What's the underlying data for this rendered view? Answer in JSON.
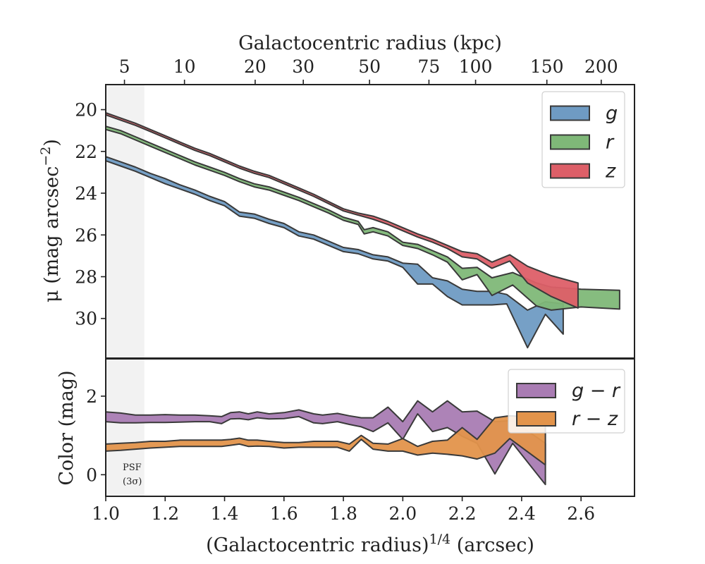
{
  "chart_data": [
    {
      "type": "area",
      "panel": "surface-brightness",
      "xlabel": "(Galactocentric radius)",
      "xlabel_sup": "1/4",
      "xlabel_unit": " (arcsec)",
      "ylabel": "μ (mag arcsec",
      "ylabel_sup": "−2",
      "ylabel_close": ")",
      "top_xlabel": "Galactocentric radius (kpc)",
      "top_x_ticks": [
        {
          "label": "5",
          "x": 1.063
        },
        {
          "label": "10",
          "x": 1.265
        },
        {
          "label": "20",
          "x": 1.503
        },
        {
          "label": "30",
          "x": 1.665
        },
        {
          "label": "50",
          "x": 1.888
        },
        {
          "label": "75",
          "x": 2.088
        },
        {
          "label": "100",
          "x": 2.245
        },
        {
          "label": "150",
          "x": 2.485
        },
        {
          "label": "200",
          "x": 2.668
        }
      ],
      "xlim": [
        1.0,
        2.78
      ],
      "ylim": [
        18.8,
        31.9
      ],
      "y_inverted": true,
      "y_ticks": [
        20,
        22,
        24,
        26,
        28,
        30
      ],
      "legend_position": "top-right",
      "psf_band": {
        "x": [
          1.0,
          1.13
        ]
      },
      "series": [
        {
          "name": "g",
          "color": "#6f9bc3",
          "x": [
            1.0,
            1.05,
            1.1,
            1.15,
            1.2,
            1.25,
            1.3,
            1.35,
            1.4,
            1.45,
            1.5,
            1.55,
            1.6,
            1.65,
            1.7,
            1.75,
            1.8,
            1.85,
            1.9,
            1.95,
            2.0,
            2.05,
            2.1,
            2.15,
            2.2,
            2.25,
            2.3,
            2.35,
            2.42,
            2.48,
            2.54
          ],
          "lower": [
            22.25,
            22.5,
            22.75,
            23.05,
            23.3,
            23.6,
            23.85,
            24.15,
            24.4,
            24.9,
            25.0,
            25.25,
            25.45,
            25.85,
            26.0,
            26.3,
            26.6,
            26.7,
            26.95,
            27.05,
            27.35,
            27.4,
            28.05,
            28.2,
            28.6,
            28.7,
            28.7,
            28.85,
            29.6,
            29.2,
            29.3
          ],
          "upper": [
            22.45,
            22.7,
            22.95,
            23.25,
            23.55,
            23.8,
            24.05,
            24.35,
            24.6,
            25.1,
            25.2,
            25.45,
            25.65,
            26.05,
            26.2,
            26.5,
            26.8,
            26.9,
            27.15,
            27.25,
            27.55,
            28.35,
            28.35,
            28.95,
            29.35,
            29.35,
            29.35,
            29.3,
            31.4,
            29.8,
            30.75
          ]
        },
        {
          "name": "r",
          "color": "#7fb878",
          "x": [
            1.0,
            1.05,
            1.1,
            1.15,
            1.2,
            1.25,
            1.3,
            1.35,
            1.4,
            1.45,
            1.5,
            1.55,
            1.6,
            1.65,
            1.7,
            1.75,
            1.8,
            1.85,
            1.87,
            1.9,
            1.95,
            2.0,
            2.05,
            2.1,
            2.15,
            2.2,
            2.25,
            2.3,
            2.37,
            2.45,
            2.5,
            2.6,
            2.73
          ],
          "lower": [
            20.8,
            21.0,
            21.3,
            21.6,
            21.9,
            22.2,
            22.5,
            22.75,
            23.0,
            23.3,
            23.55,
            23.7,
            23.95,
            24.2,
            24.5,
            24.8,
            25.15,
            25.35,
            25.75,
            25.65,
            25.85,
            26.35,
            26.45,
            26.75,
            27.05,
            27.6,
            27.55,
            28.05,
            27.8,
            28.3,
            28.5,
            28.6,
            28.65
          ],
          "upper": [
            20.95,
            21.15,
            21.45,
            21.75,
            22.05,
            22.35,
            22.65,
            22.9,
            23.15,
            23.45,
            23.7,
            23.85,
            24.1,
            24.35,
            24.65,
            24.95,
            25.3,
            25.5,
            25.95,
            25.85,
            26.05,
            26.5,
            26.65,
            26.95,
            27.3,
            28.15,
            27.9,
            28.9,
            28.4,
            29.4,
            29.6,
            29.45,
            29.55
          ]
        },
        {
          "name": "z",
          "color": "#dd5f68",
          "x": [
            1.0,
            1.05,
            1.1,
            1.15,
            1.2,
            1.25,
            1.3,
            1.35,
            1.4,
            1.45,
            1.5,
            1.55,
            1.6,
            1.65,
            1.7,
            1.75,
            1.8,
            1.85,
            1.9,
            1.95,
            2.0,
            2.05,
            2.1,
            2.15,
            2.2,
            2.25,
            2.3,
            2.36,
            2.42,
            2.5,
            2.59
          ],
          "lower": [
            20.15,
            20.4,
            20.65,
            20.95,
            21.25,
            21.55,
            21.85,
            22.1,
            22.4,
            22.7,
            22.95,
            23.15,
            23.45,
            23.75,
            24.05,
            24.4,
            24.75,
            24.95,
            25.1,
            25.35,
            25.65,
            25.95,
            26.2,
            26.5,
            26.8,
            26.9,
            27.3,
            26.95,
            27.5,
            27.95,
            28.3
          ],
          "upper": [
            20.25,
            20.5,
            20.75,
            21.05,
            21.35,
            21.65,
            21.95,
            22.2,
            22.5,
            22.8,
            23.05,
            23.25,
            23.55,
            23.85,
            24.15,
            24.5,
            24.85,
            25.05,
            25.25,
            25.5,
            25.8,
            26.1,
            26.35,
            26.65,
            27.05,
            27.15,
            27.6,
            27.25,
            28.3,
            28.95,
            29.5
          ]
        }
      ]
    },
    {
      "type": "area",
      "panel": "color",
      "ylabel": "Color (mag)",
      "xlim": [
        1.0,
        2.78
      ],
      "ylim": [
        -0.55,
        2.95
      ],
      "y_ticks": [
        0,
        2
      ],
      "x_ticks": [
        "1.0",
        "1.2",
        "1.4",
        "1.6",
        "1.8",
        "2.0",
        "2.2",
        "2.4",
        "2.6"
      ],
      "legend_position": "top-right",
      "psf_label_line1": "PSF",
      "psf_label_line2": "(3σ)",
      "series": [
        {
          "name": "g − r",
          "color": "#a97cb3",
          "x": [
            1.0,
            1.05,
            1.1,
            1.15,
            1.2,
            1.25,
            1.3,
            1.35,
            1.39,
            1.42,
            1.45,
            1.48,
            1.51,
            1.55,
            1.6,
            1.65,
            1.7,
            1.73,
            1.78,
            1.82,
            1.86,
            1.9,
            1.95,
            2.0,
            2.05,
            2.1,
            2.15,
            2.2,
            2.25,
            2.31,
            2.37,
            2.48
          ],
          "lower": [
            1.35,
            1.32,
            1.32,
            1.33,
            1.33,
            1.34,
            1.35,
            1.35,
            1.3,
            1.42,
            1.43,
            1.4,
            1.45,
            1.42,
            1.43,
            1.48,
            1.32,
            1.3,
            1.35,
            1.28,
            1.22,
            1.1,
            1.32,
            0.9,
            1.55,
            1.1,
            1.2,
            0.98,
            0.8,
            0.02,
            0.8,
            -0.25
          ],
          "upper": [
            1.6,
            1.57,
            1.52,
            1.52,
            1.53,
            1.52,
            1.52,
            1.5,
            1.48,
            1.58,
            1.6,
            1.55,
            1.6,
            1.55,
            1.58,
            1.65,
            1.55,
            1.52,
            1.56,
            1.5,
            1.45,
            1.45,
            1.72,
            1.35,
            1.88,
            1.6,
            1.88,
            1.6,
            1.62,
            1.35,
            1.38,
            0.8
          ]
        },
        {
          "name": "r − z",
          "color": "#e3944b",
          "x": [
            1.0,
            1.05,
            1.1,
            1.15,
            1.2,
            1.25,
            1.3,
            1.35,
            1.39,
            1.42,
            1.45,
            1.48,
            1.51,
            1.55,
            1.6,
            1.65,
            1.7,
            1.73,
            1.78,
            1.82,
            1.86,
            1.9,
            1.95,
            2.0,
            2.05,
            2.1,
            2.15,
            2.2,
            2.25,
            2.31,
            2.36,
            2.48
          ],
          "lower": [
            0.6,
            0.62,
            0.65,
            0.68,
            0.7,
            0.72,
            0.72,
            0.72,
            0.72,
            0.75,
            0.78,
            0.72,
            0.73,
            0.72,
            0.68,
            0.7,
            0.7,
            0.7,
            0.7,
            0.6,
            0.9,
            0.65,
            0.6,
            0.6,
            0.5,
            0.55,
            0.52,
            0.48,
            0.4,
            0.55,
            0.92,
            0.25
          ],
          "upper": [
            0.78,
            0.8,
            0.82,
            0.85,
            0.85,
            0.88,
            0.88,
            0.88,
            0.88,
            0.9,
            0.93,
            0.88,
            0.88,
            0.85,
            0.82,
            0.82,
            0.85,
            0.85,
            0.85,
            0.78,
            1.0,
            0.8,
            0.78,
            0.92,
            0.72,
            0.85,
            0.88,
            1.2,
            0.9,
            1.45,
            1.5,
            1.45
          ]
        }
      ]
    }
  ]
}
